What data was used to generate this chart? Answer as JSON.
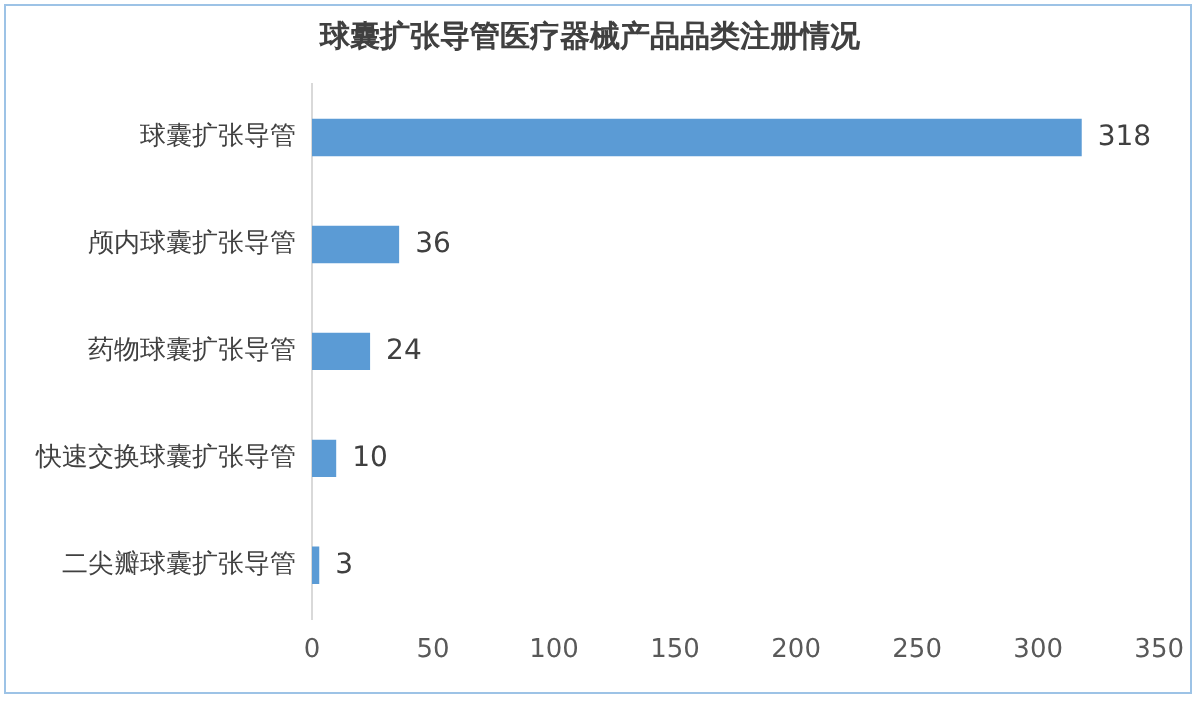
{
  "chart_data": {
    "type": "bar",
    "orientation": "horizontal",
    "title": "球囊扩张导管医疗器械产品品类注册情况",
    "categories": [
      "球囊扩张导管",
      "颅内球囊扩张导管",
      "药物球囊扩张导管",
      "快速交换球囊扩张导管",
      "二尖瓣球囊扩张导管"
    ],
    "values": [
      318,
      36,
      24,
      10,
      3
    ],
    "color": "#5b9bd5",
    "xlim": [
      0,
      350
    ],
    "xticks": [
      0,
      50,
      100,
      150,
      200,
      250,
      300,
      350
    ],
    "grid": false,
    "data_labels": true
  }
}
